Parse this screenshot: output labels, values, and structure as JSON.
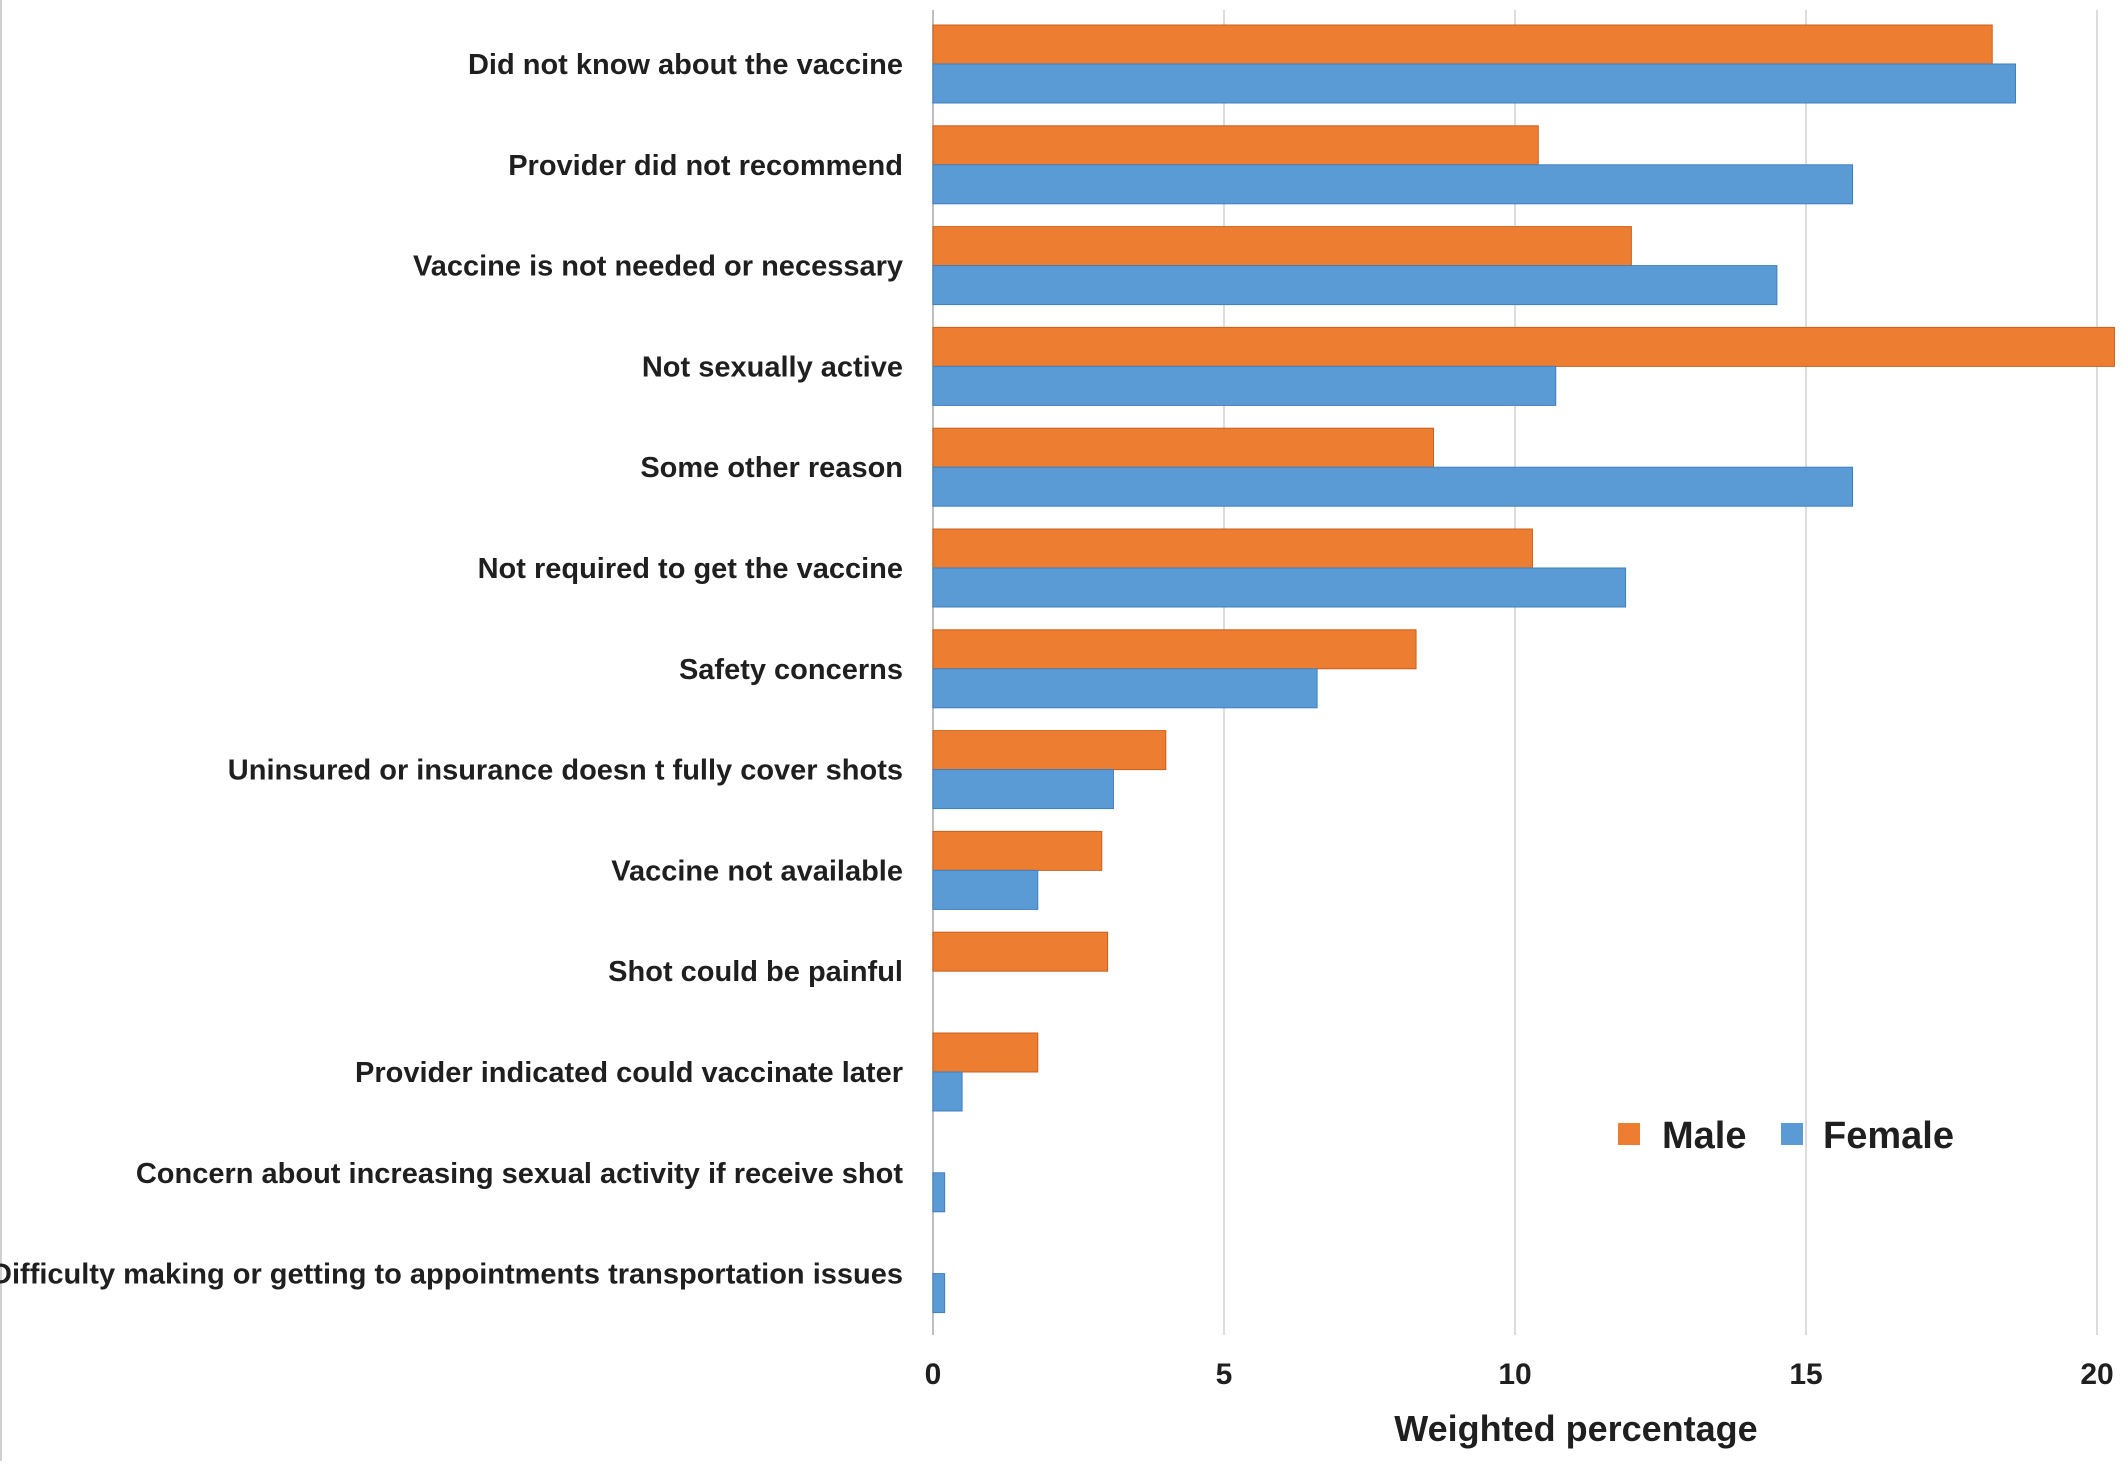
{
  "chart_data": {
    "type": "bar",
    "orientation": "horizontal",
    "categories": [
      "Did not know about the vaccine",
      "Provider did not recommend",
      "Vaccine is not needed or necessary",
      "Not sexually active",
      "Some other reason",
      "Not required to get the vaccine",
      "Safety concerns",
      "Uninsured or insurance doesn t fully cover shots",
      "Vaccine not available",
      "Shot could be painful",
      "Provider indicated could vaccinate later",
      "Concern about increasing sexual activity if receive shot",
      "Difficulty making or getting to appointments transportation issues"
    ],
    "series": [
      {
        "name": "Male",
        "color": "#ED7D31",
        "values": [
          18.2,
          10.4,
          12.0,
          20.3,
          8.6,
          10.3,
          8.3,
          4.0,
          2.9,
          3.0,
          1.8,
          0,
          0
        ]
      },
      {
        "name": "Female",
        "color": "#5B9BD5",
        "values": [
          18.6,
          15.8,
          14.5,
          10.7,
          15.8,
          11.9,
          6.6,
          3.1,
          1.8,
          0,
          0.5,
          0.2,
          0.2
        ]
      }
    ],
    "xlabel": "Weighted percentage",
    "ylabel": "",
    "xlim": [
      0,
      20
    ],
    "xticks": [
      "0",
      "5",
      "10",
      "15",
      "20"
    ],
    "grid": "vertical",
    "legend_position": "bottom-right"
  }
}
